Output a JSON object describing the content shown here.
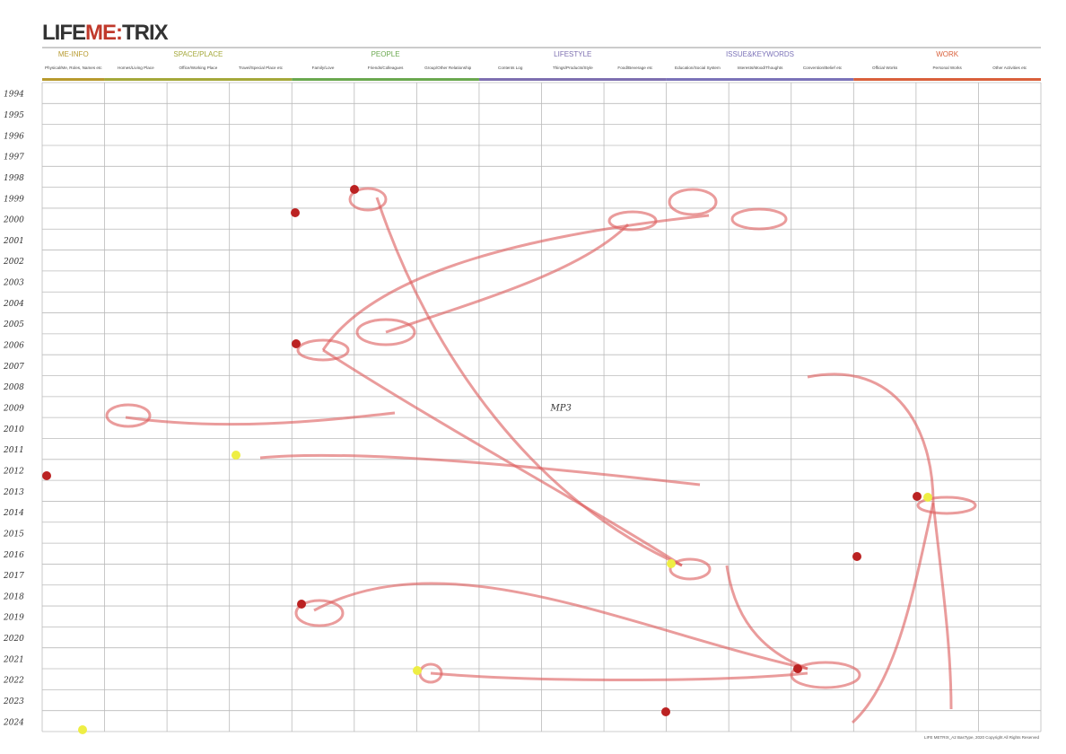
{
  "header": {
    "title": [
      "LIFE",
      "ME:",
      "TRIX"
    ],
    "groups": [
      {
        "name": "ME-INFO",
        "span": 1,
        "color": "#b79a2e"
      },
      {
        "name": "SPACE/PLACE",
        "span": 3,
        "color": "#a4a83a"
      },
      {
        "name": "PEOPLE",
        "span": 3,
        "color": "#6aa84f"
      },
      {
        "name": "LIFESTYLE",
        "span": 3,
        "color": "#7d6fb0"
      },
      {
        "name": "ISSUE&KEYWORDS",
        "span": 3,
        "color": "#7b72b8"
      },
      {
        "name": "WORK",
        "span": 3,
        "color": "#d9603b"
      }
    ],
    "columns": [
      "Physical/Me, Roles, Names etc",
      "Homes/Living Place",
      "Office/Working Place",
      "Travel/Special Place etc",
      "Family/Love",
      "Friends/Colleagues",
      "Group/Other Relationship",
      "Contents Log",
      "Things/Products/Style",
      "Food/Beverage etc",
      "Education/Social System",
      "Interests/Mood/Thoughts",
      "Convention/Belief etc",
      "Official Works",
      "Personal Works",
      "Other Activities etc"
    ]
  },
  "years": [
    "1994",
    "1995",
    "1996",
    "1997",
    "1998",
    "1999",
    "2000",
    "2001",
    "2002",
    "2003",
    "2004",
    "2005",
    "2006",
    "2007",
    "2008",
    "2009",
    "2010",
    "2011",
    "2012",
    "2013",
    "2014",
    "2015",
    "2016",
    "2017",
    "2018",
    "2019",
    "2020",
    "2021",
    "2022",
    "2023",
    "2024"
  ],
  "notes": [
    {
      "row": 15,
      "col": 8,
      "text": "MP3"
    }
  ],
  "footer": "LIFE METRIX_A2 BasType, 2020 Copyright All Rights Reserved"
}
